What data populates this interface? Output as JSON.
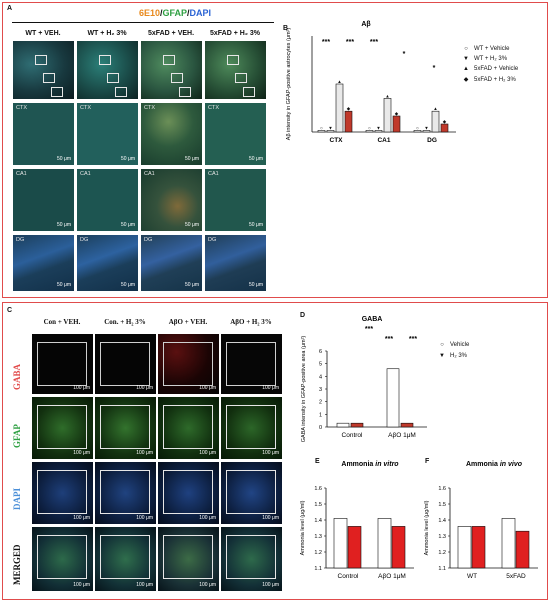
{
  "top": {
    "panel_a_label": "A",
    "panel_b_label": "B",
    "stain_title": {
      "part1": "6E10",
      "sep1": "/",
      "part2": "GFAP",
      "sep2": "/",
      "part3": "DAPI"
    },
    "columns": [
      "WT + VEH.",
      "WT + H₂ 3%",
      "5xFAD + VEH.",
      "5xFAD + H₂ 3%"
    ],
    "rows": [
      {
        "label": "",
        "tiles": [
          "",
          "",
          "",
          ""
        ]
      },
      {
        "label": "CTX",
        "tiles": [
          "CTX",
          "CTX",
          "CTX",
          "CTX"
        ]
      },
      {
        "label": "CA1",
        "tiles": [
          "CA1",
          "CA1",
          "CA1",
          "CA1"
        ]
      },
      {
        "label": "DG",
        "tiles": [
          "DG",
          "DG",
          "DG",
          "DG"
        ]
      }
    ],
    "scale_label": "50 μm",
    "colors": {
      "stain1": "#e88a1e",
      "stain2": "#2ea042",
      "stain3": "#2a63d4"
    }
  },
  "bottom": {
    "panel_c_label": "C",
    "panel_d_label": "D",
    "panel_e_label": "E",
    "panel_f_label": "F",
    "columns": [
      "Con + VEH.",
      "Con. + H₂ 3%",
      "AβO + VEH.",
      "AβO + H₂ 3%"
    ],
    "rows": [
      "GABA",
      "GFAP",
      "DAPI",
      "MERGED"
    ],
    "scale_label": "100 μm",
    "row_colors": {
      "GABA": "#e24a4a",
      "GFAP": "#2ea042",
      "DAPI": "#4a8fd8",
      "MERGED": "#111111"
    }
  },
  "legends": {
    "b": [
      "WT + Vehicle",
      "WT + H₂ 3%",
      "5xFAD + Vehicle",
      "5xFAD + H₂ 3%"
    ],
    "d": [
      "Vehicle",
      "H₂ 3%"
    ]
  },
  "chart_data": [
    {
      "id": "B",
      "type": "bar",
      "title": "Aβ",
      "ylabel": "Aβ intensity in GFAP-positive astrocytes (μm²)",
      "categories": [
        "CTX",
        "CA1",
        "DG"
      ],
      "series": [
        {
          "name": "WT + Vehicle",
          "values": [
            1,
            1,
            1
          ]
        },
        {
          "name": "WT + H₂ 3%",
          "values": [
            1,
            1,
            1
          ]
        },
        {
          "name": "5xFAD + Vehicle",
          "values": [
            30,
            21,
            13
          ]
        },
        {
          "name": "5xFAD + H₂ 3%",
          "values": [
            13,
            10,
            5
          ]
        }
      ],
      "significance": [
        "***",
        "***",
        "***",
        "*",
        "*"
      ],
      "ylim": [
        0,
        60
      ]
    },
    {
      "id": "D",
      "type": "bar",
      "title": "GABA",
      "ylabel": "GABA intensity in GFAP-positive area (μm²)",
      "categories": [
        "Control",
        "AβO 1μM"
      ],
      "series": [
        {
          "name": "Vehicle",
          "values": [
            0.3,
            4.6
          ]
        },
        {
          "name": "H₂ 3%",
          "values": [
            0.3,
            0.3
          ]
        }
      ],
      "yticks": [
        "0",
        "1",
        "2",
        "3",
        "4",
        "5",
        "6"
      ],
      "ylim": [
        0,
        6
      ],
      "significance": [
        "***",
        "***",
        "***"
      ]
    },
    {
      "id": "E",
      "type": "bar",
      "title": "Ammonia",
      "title_italic": "in vitro",
      "ylabel": "Ammonia level (μg/ml)",
      "categories": [
        "Control",
        "AβO 1μM"
      ],
      "series": [
        {
          "name": "Vehicle",
          "values": [
            1.41,
            1.41
          ]
        },
        {
          "name": "H₂ 3%",
          "values": [
            1.36,
            1.36
          ]
        }
      ],
      "yticks": [
        "1.1",
        "1.2",
        "1.3",
        "1.4",
        "1.5",
        "1.6"
      ],
      "ylim": [
        1.1,
        1.6
      ]
    },
    {
      "id": "F",
      "type": "bar",
      "title": "Ammonia",
      "title_italic": "in vivo",
      "ylabel": "Ammonia level (μg/ml)",
      "categories": [
        "WT",
        "5xFAD"
      ],
      "series": [
        {
          "name": "Vehicle",
          "values": [
            1.36,
            1.41
          ]
        },
        {
          "name": "H₂ 3%",
          "values": [
            1.36,
            1.33
          ]
        }
      ],
      "yticks": [
        "1.1",
        "1.2",
        "1.3",
        "1.4",
        "1.5",
        "1.6"
      ],
      "ylim": [
        1.1,
        1.6
      ]
    }
  ]
}
